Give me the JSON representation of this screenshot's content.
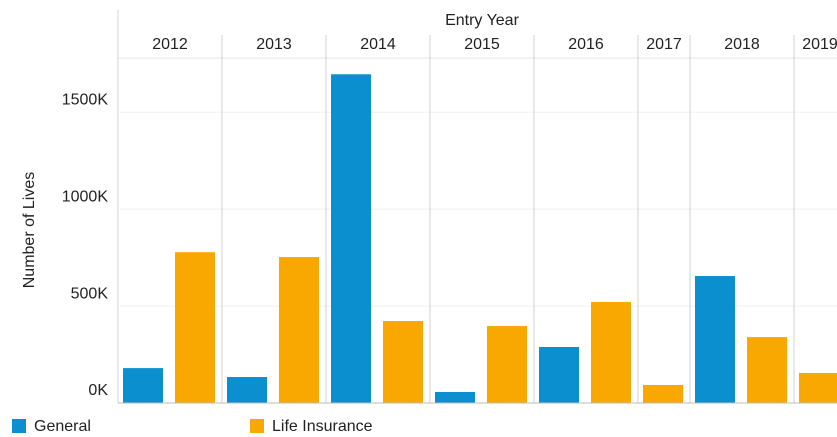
{
  "chart_data": {
    "type": "bar",
    "x_label": "Entry Year",
    "y_label": "Number of Lives",
    "categories": [
      "2012",
      "2013",
      "2014",
      "2015",
      "2016",
      "2017",
      "2018",
      "2019"
    ],
    "series": [
      {
        "name": "General",
        "color": "#0b8fce",
        "values": [
          180000,
          134000,
          1696000,
          57000,
          289000,
          null,
          655000,
          null
        ]
      },
      {
        "name": "Life Insurance",
        "color": "#f8a800",
        "values": [
          778000,
          753000,
          423000,
          397000,
          521000,
          93000,
          340000,
          155000
        ]
      }
    ],
    "ylim": [
      0,
      1780000
    ],
    "yticks": [
      {
        "value": 0,
        "label": "0K"
      },
      {
        "value": 500000,
        "label": "500K"
      },
      {
        "value": 1000000,
        "label": "1000K"
      },
      {
        "value": 1500000,
        "label": "1500K"
      }
    ],
    "grid": true
  }
}
